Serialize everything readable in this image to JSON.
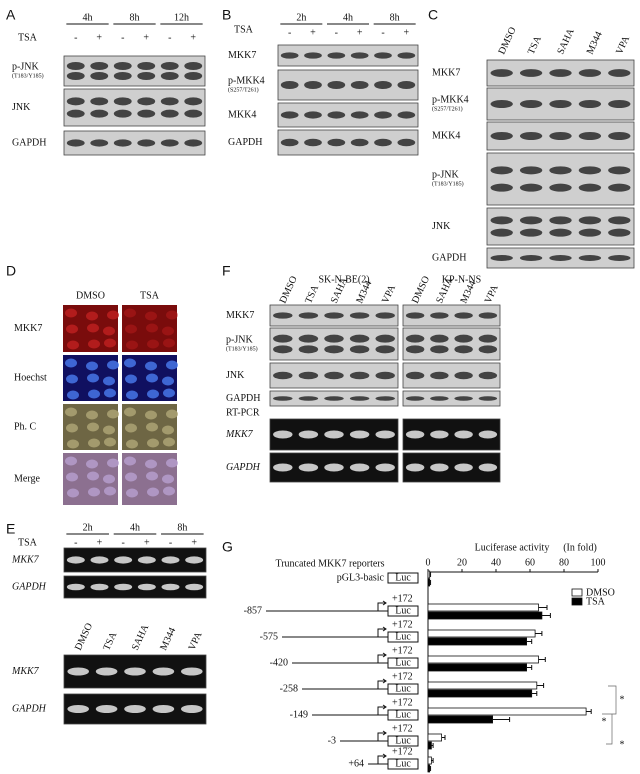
{
  "a": {
    "label": "A",
    "treatment": "TSA",
    "times": [
      "4h",
      "8h",
      "12h"
    ],
    "signs": [
      "-",
      "+",
      "-",
      "+",
      "-",
      "+"
    ],
    "rows": [
      {
        "name": "p-JNK",
        "site": "(T183/Y185)"
      },
      {
        "name": "JNK"
      },
      {
        "name": "GAPDH"
      }
    ]
  },
  "b": {
    "label": "B",
    "treatment": "TSA",
    "times": [
      "2h",
      "4h",
      "8h"
    ],
    "signs": [
      "-",
      "+",
      "-",
      "+",
      "-",
      "+"
    ],
    "rows": [
      {
        "name": "MKK7"
      },
      {
        "name": "p-MKK4",
        "site": "(S257/T261)"
      },
      {
        "name": "MKK4"
      },
      {
        "name": "GAPDH"
      }
    ]
  },
  "c": {
    "label": "C",
    "lanes": [
      "DMSO",
      "TSA",
      "SAHA",
      "M344",
      "VPA"
    ],
    "rows": [
      {
        "name": "MKK7"
      },
      {
        "name": "p-MKK4",
        "site": "(S257/T261)"
      },
      {
        "name": "MKK4"
      },
      {
        "name": "p-JNK",
        "site": "(T183/Y185)"
      },
      {
        "name": "JNK"
      },
      {
        "name": "GAPDH"
      }
    ]
  },
  "d": {
    "label": "D",
    "columns": [
      "DMSO",
      "TSA"
    ],
    "rows": [
      "MKK7",
      "Hoechst",
      "Ph. C",
      "Merge"
    ]
  },
  "e": {
    "label": "E",
    "treatment": "TSA",
    "times": [
      "2h",
      "4h",
      "8h"
    ],
    "signs": [
      "-",
      "+",
      "-",
      "+",
      "-",
      "+"
    ],
    "gel_rows": [
      "MKK7",
      "GAPDH"
    ],
    "lanes": [
      "DMSO",
      "TSA",
      "SAHA",
      "M344",
      "VPA"
    ],
    "gel_rows2": [
      "MKK7",
      "GAPDH"
    ]
  },
  "f": {
    "label": "F",
    "groups": [
      {
        "name": "SK-N-BE(2)",
        "lanes": [
          "DMSO",
          "TSA",
          "SAHA",
          "M344",
          "VPA"
        ]
      },
      {
        "name": "KP-N-NS",
        "lanes": [
          "DMSO",
          "SAHA",
          "M344",
          "VPA"
        ]
      }
    ],
    "rows": [
      {
        "name": "MKK7"
      },
      {
        "name": "p-JNK",
        "site": "(T183/Y185)"
      },
      {
        "name": "JNK"
      },
      {
        "name": "GAPDH"
      }
    ],
    "method": "RT-PCR",
    "gel_rows": [
      "MKK7",
      "GAPDH"
    ]
  },
  "chart_data": {
    "type": "bar",
    "label": "G",
    "reporters_title": "Truncated MKK7 reporters",
    "xlabel": "Luciferase activity",
    "xunit": "(In fold)",
    "categories": [
      "pGL3-basic",
      "-857",
      "-575",
      "-420",
      "-258",
      "-149",
      "-3",
      "+64"
    ],
    "tss_labels": [
      "+172",
      "+172",
      "+172",
      "+172",
      "+172",
      "+172",
      "+172"
    ],
    "reporter_labels": [
      "Luc",
      "Luc",
      "Luc",
      "Luc",
      "Luc",
      "Luc",
      "Luc",
      "Luc"
    ],
    "xlim": [
      0,
      100
    ],
    "xticks": [
      0,
      20,
      40,
      60,
      80,
      100
    ],
    "series": [
      {
        "name": "DMSO",
        "color": "#ffffff",
        "values": [
          1,
          65,
          63,
          65,
          64,
          93,
          8,
          2
        ],
        "errors": [
          0.5,
          5,
          4,
          4,
          4,
          3,
          2,
          1
        ]
      },
      {
        "name": "TSA",
        "color": "#000000",
        "values": [
          1,
          67,
          58,
          58,
          61,
          38,
          2,
          1
        ],
        "errors": [
          0.5,
          5,
          3,
          3,
          3,
          10,
          1,
          0.5
        ]
      }
    ],
    "significance": [
      "*",
      "*",
      "*"
    ]
  }
}
